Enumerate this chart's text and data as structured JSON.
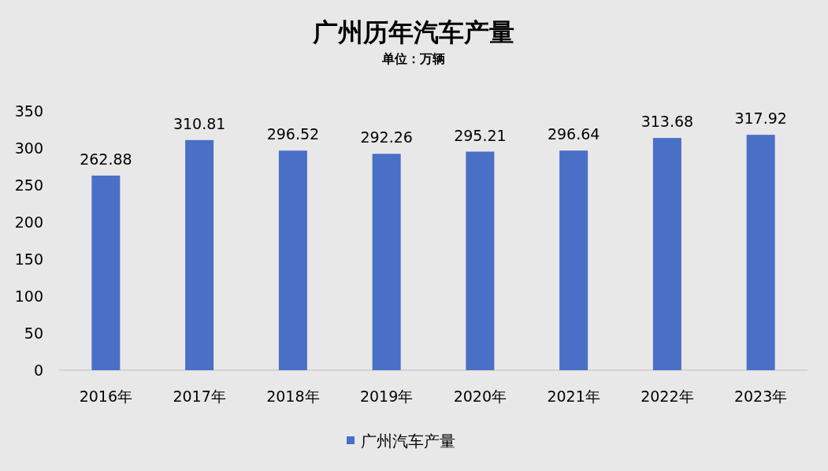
{
  "chart_data": {
    "type": "bar",
    "title": "广州历年汽车产量",
    "subtitle": "单位：万辆",
    "categories": [
      "2016年",
      "2017年",
      "2018年",
      "2019年",
      "2020年",
      "2021年",
      "2022年",
      "2023年"
    ],
    "series": [
      {
        "name": "广州汽车产量",
        "color": "#4a6fc6",
        "values": [
          262.88,
          310.81,
          296.52,
          292.26,
          295.21,
          296.64,
          313.68,
          317.92
        ]
      }
    ],
    "ylim": [
      0,
      350
    ],
    "yticks": [
      0,
      50,
      100,
      150,
      200,
      250,
      300,
      350
    ],
    "data_labels": true,
    "legend": "bottom"
  }
}
